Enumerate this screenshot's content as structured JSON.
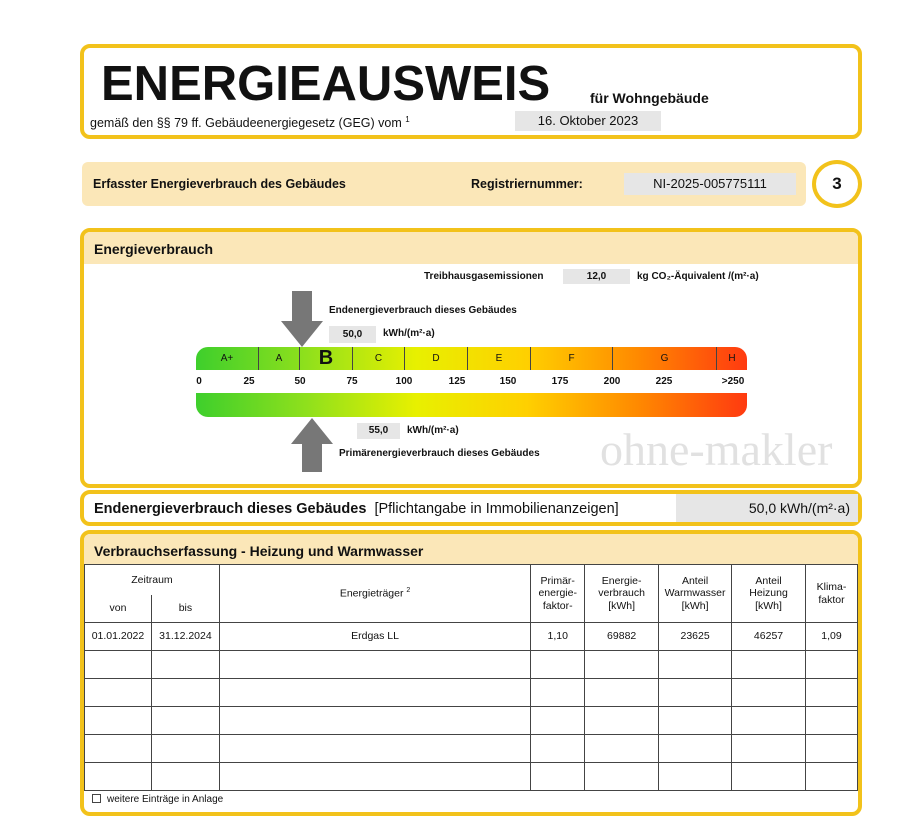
{
  "header": {
    "title": "ENERGIEAUSWEIS",
    "subtitle": "für Wohngebäude",
    "legal": "gemäß den §§ 79 ff. Gebäudeenergiegesetz (GEG) vom",
    "footnote": "1",
    "date": "16. Oktober 2023"
  },
  "reg": {
    "label": "Erfasster Energieverbrauch des Gebäudes",
    "reg_label": "Registriernummer:",
    "reg_value": "NI-2025-005775111",
    "page": "3"
  },
  "energy": {
    "title": "Energieverbrauch",
    "ghg_label": "Treibhausgasemissionen",
    "ghg_value": "12,0",
    "ghg_unit": "kg CO₂-Äquivalent /(m²·a)",
    "end_label": "Endenergieverbrauch dieses Gebäudes",
    "end_value": "50,0",
    "end_unit": "kWh/(m²·a)",
    "prim_value": "55,0",
    "prim_unit": "kWh/(m²·a)",
    "prim_label": "Primärenergieverbrauch dieses Gebäudes",
    "classes": [
      "A+",
      "A",
      "B",
      "C",
      "D",
      "E",
      "F",
      "G",
      "H"
    ],
    "active_class": "B",
    "ticks": [
      "0",
      "25",
      "50",
      "75",
      "100",
      "125",
      "150",
      "175",
      "200",
      "225",
      ">250"
    ]
  },
  "summary": {
    "label": "Endenergieverbrauch dieses Gebäudes",
    "note": "[Pflichtangabe in Immobilienanzeigen]",
    "value": "50,0 kWh/(m²·a)"
  },
  "table": {
    "title": "Verbrauchserfassung - Heizung und Warmwasser",
    "headers": {
      "zeitraum": "Zeitraum",
      "von": "von",
      "bis": "bis",
      "traeger": "Energieträger",
      "traeger_note": "2",
      "primaer": "Primär-\nenergie-\nfaktor-",
      "verbrauch": "Energie-\nverbrauch\n[kWh]",
      "warmwasser": "Anteil\nWarmwasser\n[kWh]",
      "heizung": "Anteil\nHeizung\n[kWh]",
      "klima": "Klima-\nfaktor"
    },
    "rows": [
      {
        "von": "01.01.2022",
        "bis": "31.12.2024",
        "traeger": "Erdgas LL",
        "primaer": "1,10",
        "verbrauch": "69882",
        "warmwasser": "23625",
        "heizung": "46257",
        "klima": "1,09"
      }
    ],
    "footer": "weitere Einträge in Anlage"
  },
  "watermark": "ohne-makler"
}
